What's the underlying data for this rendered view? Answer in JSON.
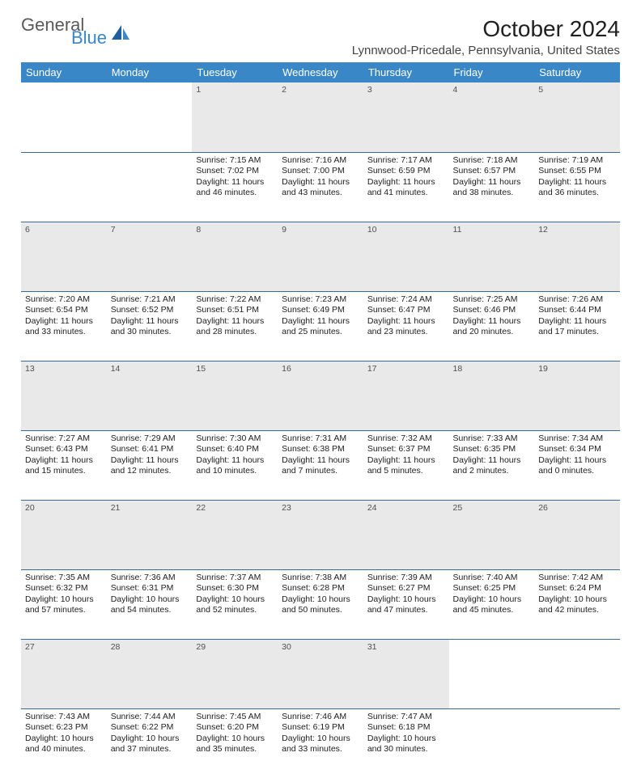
{
  "brand": {
    "word1": "General",
    "word2": "Blue"
  },
  "title": "October 2024",
  "location": "Lynnwood-Pricedale, Pennsylvania, United States",
  "colors": {
    "header_bg": "#3a87c8",
    "header_text": "#ffffff",
    "daynum_bg": "#e9e9e9",
    "rule": "#3a6a94",
    "body_text": "#202020",
    "logo_gray": "#5a5a5a",
    "logo_blue": "#3a87c8"
  },
  "weekdays": [
    "Sunday",
    "Monday",
    "Tuesday",
    "Wednesday",
    "Thursday",
    "Friday",
    "Saturday"
  ],
  "weeks": [
    {
      "nums": [
        "",
        "",
        "1",
        "2",
        "3",
        "4",
        "5"
      ],
      "cells": [
        [],
        [],
        [
          "Sunrise: 7:15 AM",
          "Sunset: 7:02 PM",
          "Daylight: 11 hours",
          "and 46 minutes."
        ],
        [
          "Sunrise: 7:16 AM",
          "Sunset: 7:00 PM",
          "Daylight: 11 hours",
          "and 43 minutes."
        ],
        [
          "Sunrise: 7:17 AM",
          "Sunset: 6:59 PM",
          "Daylight: 11 hours",
          "and 41 minutes."
        ],
        [
          "Sunrise: 7:18 AM",
          "Sunset: 6:57 PM",
          "Daylight: 11 hours",
          "and 38 minutes."
        ],
        [
          "Sunrise: 7:19 AM",
          "Sunset: 6:55 PM",
          "Daylight: 11 hours",
          "and 36 minutes."
        ]
      ]
    },
    {
      "nums": [
        "6",
        "7",
        "8",
        "9",
        "10",
        "11",
        "12"
      ],
      "cells": [
        [
          "Sunrise: 7:20 AM",
          "Sunset: 6:54 PM",
          "Daylight: 11 hours",
          "and 33 minutes."
        ],
        [
          "Sunrise: 7:21 AM",
          "Sunset: 6:52 PM",
          "Daylight: 11 hours",
          "and 30 minutes."
        ],
        [
          "Sunrise: 7:22 AM",
          "Sunset: 6:51 PM",
          "Daylight: 11 hours",
          "and 28 minutes."
        ],
        [
          "Sunrise: 7:23 AM",
          "Sunset: 6:49 PM",
          "Daylight: 11 hours",
          "and 25 minutes."
        ],
        [
          "Sunrise: 7:24 AM",
          "Sunset: 6:47 PM",
          "Daylight: 11 hours",
          "and 23 minutes."
        ],
        [
          "Sunrise: 7:25 AM",
          "Sunset: 6:46 PM",
          "Daylight: 11 hours",
          "and 20 minutes."
        ],
        [
          "Sunrise: 7:26 AM",
          "Sunset: 6:44 PM",
          "Daylight: 11 hours",
          "and 17 minutes."
        ]
      ]
    },
    {
      "nums": [
        "13",
        "14",
        "15",
        "16",
        "17",
        "18",
        "19"
      ],
      "cells": [
        [
          "Sunrise: 7:27 AM",
          "Sunset: 6:43 PM",
          "Daylight: 11 hours",
          "and 15 minutes."
        ],
        [
          "Sunrise: 7:29 AM",
          "Sunset: 6:41 PM",
          "Daylight: 11 hours",
          "and 12 minutes."
        ],
        [
          "Sunrise: 7:30 AM",
          "Sunset: 6:40 PM",
          "Daylight: 11 hours",
          "and 10 minutes."
        ],
        [
          "Sunrise: 7:31 AM",
          "Sunset: 6:38 PM",
          "Daylight: 11 hours",
          "and 7 minutes."
        ],
        [
          "Sunrise: 7:32 AM",
          "Sunset: 6:37 PM",
          "Daylight: 11 hours",
          "and 5 minutes."
        ],
        [
          "Sunrise: 7:33 AM",
          "Sunset: 6:35 PM",
          "Daylight: 11 hours",
          "and 2 minutes."
        ],
        [
          "Sunrise: 7:34 AM",
          "Sunset: 6:34 PM",
          "Daylight: 11 hours",
          "and 0 minutes."
        ]
      ]
    },
    {
      "nums": [
        "20",
        "21",
        "22",
        "23",
        "24",
        "25",
        "26"
      ],
      "cells": [
        [
          "Sunrise: 7:35 AM",
          "Sunset: 6:32 PM",
          "Daylight: 10 hours",
          "and 57 minutes."
        ],
        [
          "Sunrise: 7:36 AM",
          "Sunset: 6:31 PM",
          "Daylight: 10 hours",
          "and 54 minutes."
        ],
        [
          "Sunrise: 7:37 AM",
          "Sunset: 6:30 PM",
          "Daylight: 10 hours",
          "and 52 minutes."
        ],
        [
          "Sunrise: 7:38 AM",
          "Sunset: 6:28 PM",
          "Daylight: 10 hours",
          "and 50 minutes."
        ],
        [
          "Sunrise: 7:39 AM",
          "Sunset: 6:27 PM",
          "Daylight: 10 hours",
          "and 47 minutes."
        ],
        [
          "Sunrise: 7:40 AM",
          "Sunset: 6:25 PM",
          "Daylight: 10 hours",
          "and 45 minutes."
        ],
        [
          "Sunrise: 7:42 AM",
          "Sunset: 6:24 PM",
          "Daylight: 10 hours",
          "and 42 minutes."
        ]
      ]
    },
    {
      "nums": [
        "27",
        "28",
        "29",
        "30",
        "31",
        "",
        ""
      ],
      "cells": [
        [
          "Sunrise: 7:43 AM",
          "Sunset: 6:23 PM",
          "Daylight: 10 hours",
          "and 40 minutes."
        ],
        [
          "Sunrise: 7:44 AM",
          "Sunset: 6:22 PM",
          "Daylight: 10 hours",
          "and 37 minutes."
        ],
        [
          "Sunrise: 7:45 AM",
          "Sunset: 6:20 PM",
          "Daylight: 10 hours",
          "and 35 minutes."
        ],
        [
          "Sunrise: 7:46 AM",
          "Sunset: 6:19 PM",
          "Daylight: 10 hours",
          "and 33 minutes."
        ],
        [
          "Sunrise: 7:47 AM",
          "Sunset: 6:18 PM",
          "Daylight: 10 hours",
          "and 30 minutes."
        ],
        [],
        []
      ]
    }
  ]
}
